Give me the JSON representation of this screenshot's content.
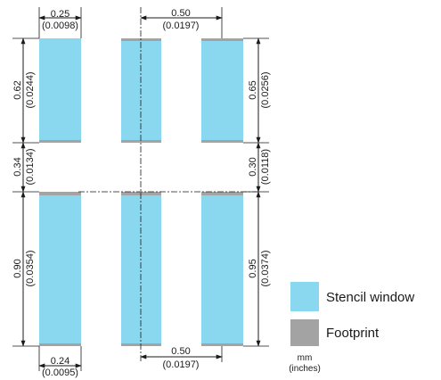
{
  "colors": {
    "stencil": "#8ad8f0",
    "footprint": "#a3a3a3",
    "line": "#1a1a1a"
  },
  "dimensions": {
    "top_pad_width": {
      "mm": "0.25",
      "in": "(0.0098)"
    },
    "top_pitch": {
      "mm": "0.50",
      "in": "(0.0197)"
    },
    "top_left_height": {
      "mm": "0.62",
      "in": "(0.0244)"
    },
    "top_right_height": {
      "mm": "0.65",
      "in": "(0.0256)"
    },
    "left_gap": {
      "mm": "0.34",
      "in": "(0.0134)"
    },
    "right_gap": {
      "mm": "0.30",
      "in": "(0.0118)"
    },
    "bottom_left_height": {
      "mm": "0.90",
      "in": "(0.0354)"
    },
    "bottom_right_height": {
      "mm": "0.95",
      "in": "(0.0374)"
    },
    "bottom_pad_width": {
      "mm": "0.24",
      "in": "(0.0095)"
    },
    "bottom_pitch": {
      "mm": "0.50",
      "in": "(0.0197)"
    }
  },
  "legend": {
    "stencil_label": "Stencil window",
    "footprint_label": "Footprint",
    "units_primary": "mm",
    "units_secondary": "(inches)"
  }
}
